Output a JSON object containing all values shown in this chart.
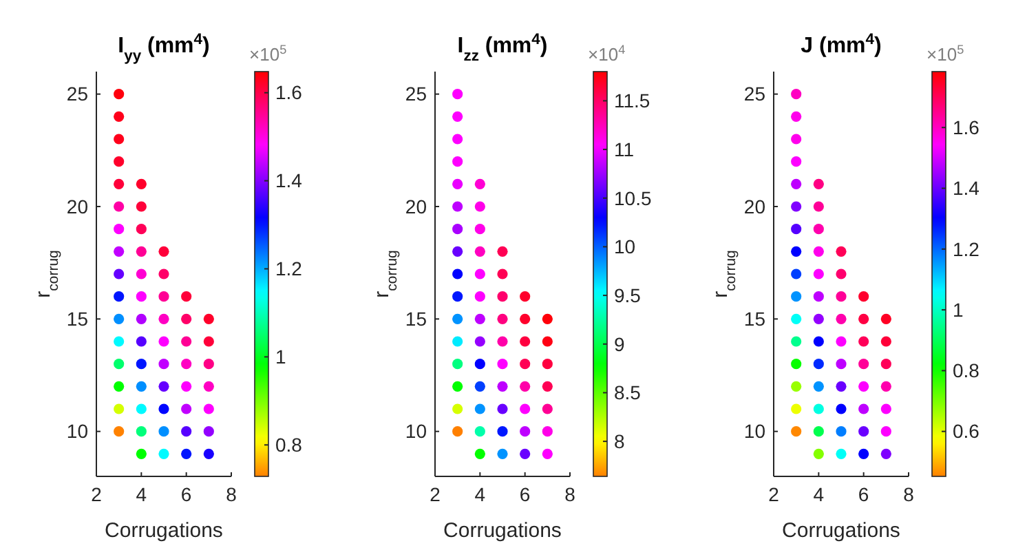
{
  "chart_data": [
    {
      "type": "scatter",
      "title": "I$_{yy}$ (mm$^{4}$)",
      "xlabel": "Corrugations",
      "ylabel": "r$_{corrug}$",
      "marker": "circle",
      "x": [
        3,
        3,
        3,
        3,
        3,
        3,
        3,
        3,
        3,
        3,
        3,
        3,
        3,
        3,
        3,
        3,
        4,
        4,
        4,
        4,
        4,
        4,
        4,
        4,
        4,
        4,
        4,
        4,
        4,
        5,
        5,
        5,
        5,
        5,
        5,
        5,
        5,
        5,
        5,
        6,
        6,
        6,
        6,
        6,
        6,
        6,
        6,
        7,
        7,
        7,
        7,
        7,
        7,
        7
      ],
      "values": [
        10,
        11,
        12,
        13,
        14,
        15,
        16,
        17,
        18,
        19,
        20,
        21,
        22,
        23,
        24,
        25,
        9,
        10,
        11,
        12,
        13,
        14,
        15,
        16,
        17,
        18,
        19,
        20,
        21,
        9,
        10,
        11,
        12,
        13,
        14,
        15,
        16,
        17,
        18,
        9,
        10,
        11,
        12,
        13,
        14,
        15,
        16,
        9,
        10,
        11,
        12,
        13,
        14,
        15
      ],
      "cvalues": [
        0.73,
        0.84,
        0.98,
        1.05,
        1.15,
        1.22,
        1.3,
        1.38,
        1.44,
        1.48,
        1.54,
        1.61,
        1.62,
        1.63,
        1.63,
        1.64,
        0.98,
        1.06,
        1.15,
        1.22,
        1.3,
        1.37,
        1.43,
        1.48,
        1.51,
        1.55,
        1.59,
        1.61,
        1.62,
        1.15,
        1.22,
        1.31,
        1.38,
        1.44,
        1.48,
        1.52,
        1.55,
        1.58,
        1.61,
        1.3,
        1.37,
        1.44,
        1.48,
        1.52,
        1.55,
        1.58,
        1.61,
        1.33,
        1.41,
        1.48,
        1.52,
        1.56,
        1.61,
        1.62
      ],
      "xlim": [
        2,
        8
      ],
      "xticks": [
        2,
        4,
        6,
        8
      ],
      "ylim": [
        8,
        26
      ],
      "yticks": [
        10,
        15,
        20,
        25
      ],
      "clim": [
        0.7285,
        1.648
      ],
      "cticks": [
        0.8,
        1,
        1.2,
        1.4,
        1.6
      ],
      "annotations": [
        "×10$^{5}$"
      ]
    },
    {
      "type": "scatter",
      "title": "I$_{zz}$ (mm$^{4}$)",
      "xlabel": "Corrugations",
      "ylabel": "r$_{corrug}$",
      "marker": "circle",
      "x": [
        3,
        3,
        3,
        3,
        3,
        3,
        3,
        3,
        3,
        3,
        3,
        3,
        3,
        3,
        3,
        3,
        4,
        4,
        4,
        4,
        4,
        4,
        4,
        4,
        4,
        4,
        4,
        4,
        4,
        5,
        5,
        5,
        5,
        5,
        5,
        5,
        5,
        5,
        5,
        6,
        6,
        6,
        6,
        6,
        6,
        6,
        6,
        7,
        7,
        7,
        7,
        7,
        7,
        7
      ],
      "values": [
        10,
        11,
        12,
        13,
        14,
        15,
        16,
        17,
        18,
        19,
        20,
        21,
        22,
        23,
        24,
        25,
        9,
        10,
        11,
        12,
        13,
        14,
        15,
        16,
        17,
        18,
        19,
        20,
        21,
        9,
        10,
        11,
        12,
        13,
        14,
        15,
        16,
        17,
        18,
        9,
        10,
        11,
        12,
        13,
        14,
        15,
        16,
        9,
        10,
        11,
        12,
        13,
        14,
        15
      ],
      "cvalues": [
        7.64,
        8.14,
        8.77,
        9.15,
        9.59,
        9.85,
        10.22,
        10.29,
        10.6,
        10.79,
        10.85,
        10.98,
        11.04,
        11.04,
        11.04,
        11.04,
        8.77,
        9.28,
        9.85,
        10.1,
        10.29,
        10.73,
        10.85,
        11.04,
        11.04,
        11.23,
        11.11,
        11.11,
        11.17,
        9.85,
        10.22,
        10.6,
        10.85,
        11.04,
        11.3,
        11.42,
        11.48,
        11.55,
        11.55,
        10.6,
        10.85,
        11.04,
        11.3,
        11.55,
        11.61,
        11.67,
        11.67,
        11.04,
        11.11,
        11.36,
        11.55,
        11.61,
        11.74,
        11.77
      ],
      "xlim": [
        2,
        8
      ],
      "xticks": [
        2,
        4,
        6,
        8
      ],
      "ylim": [
        8,
        26
      ],
      "yticks": [
        10,
        15,
        20,
        25
      ],
      "clim": [
        7.64,
        11.8
      ],
      "cticks": [
        8,
        8.5,
        9,
        9.5,
        10,
        10.5,
        11,
        11.5
      ],
      "annotations": [
        "×10$^{4}$"
      ]
    },
    {
      "type": "scatter",
      "title": "J (mm$^{4}$)",
      "xlabel": "Corrugations",
      "ylabel": "r$_{corrug}$",
      "marker": "circle",
      "x": [
        3,
        3,
        3,
        3,
        3,
        3,
        3,
        3,
        3,
        3,
        3,
        3,
        3,
        3,
        3,
        3,
        4,
        4,
        4,
        4,
        4,
        4,
        4,
        4,
        4,
        4,
        4,
        4,
        4,
        5,
        5,
        5,
        5,
        5,
        5,
        5,
        5,
        5,
        5,
        6,
        6,
        6,
        6,
        6,
        6,
        6,
        6,
        7,
        7,
        7,
        7,
        7,
        7,
        7
      ],
      "values": [
        10,
        11,
        12,
        13,
        14,
        15,
        16,
        17,
        18,
        19,
        20,
        21,
        22,
        23,
        24,
        25,
        9,
        10,
        11,
        12,
        13,
        14,
        15,
        16,
        17,
        18,
        19,
        20,
        21,
        9,
        10,
        11,
        12,
        13,
        14,
        15,
        16,
        17,
        18,
        9,
        10,
        11,
        12,
        13,
        14,
        15,
        16,
        9,
        10,
        11,
        12,
        13,
        14,
        15
      ],
      "cvalues": [
        0.46,
        0.59,
        0.67,
        0.81,
        0.95,
        1.05,
        1.16,
        1.24,
        1.3,
        1.38,
        1.42,
        1.48,
        1.54,
        1.56,
        1.56,
        1.6,
        0.69,
        0.89,
        1.03,
        1.16,
        1.26,
        1.3,
        1.44,
        1.48,
        1.54,
        1.56,
        1.62,
        1.64,
        1.66,
        1.05,
        1.18,
        1.3,
        1.4,
        1.48,
        1.54,
        1.62,
        1.64,
        1.68,
        1.7,
        1.3,
        1.4,
        1.48,
        1.54,
        1.64,
        1.7,
        1.72,
        1.74,
        1.42,
        1.54,
        1.54,
        1.62,
        1.7,
        1.73,
        1.75
      ],
      "xlim": [
        2,
        8
      ],
      "xticks": [
        2,
        4,
        6,
        8
      ],
      "ylim": [
        8,
        26
      ],
      "yticks": [
        10,
        15,
        20,
        25
      ],
      "clim": [
        0.452,
        1.784
      ],
      "cticks": [
        0.6,
        0.8,
        1,
        1.2,
        1.4,
        1.6
      ],
      "annotations": [
        "×10$^{5}$"
      ]
    }
  ]
}
